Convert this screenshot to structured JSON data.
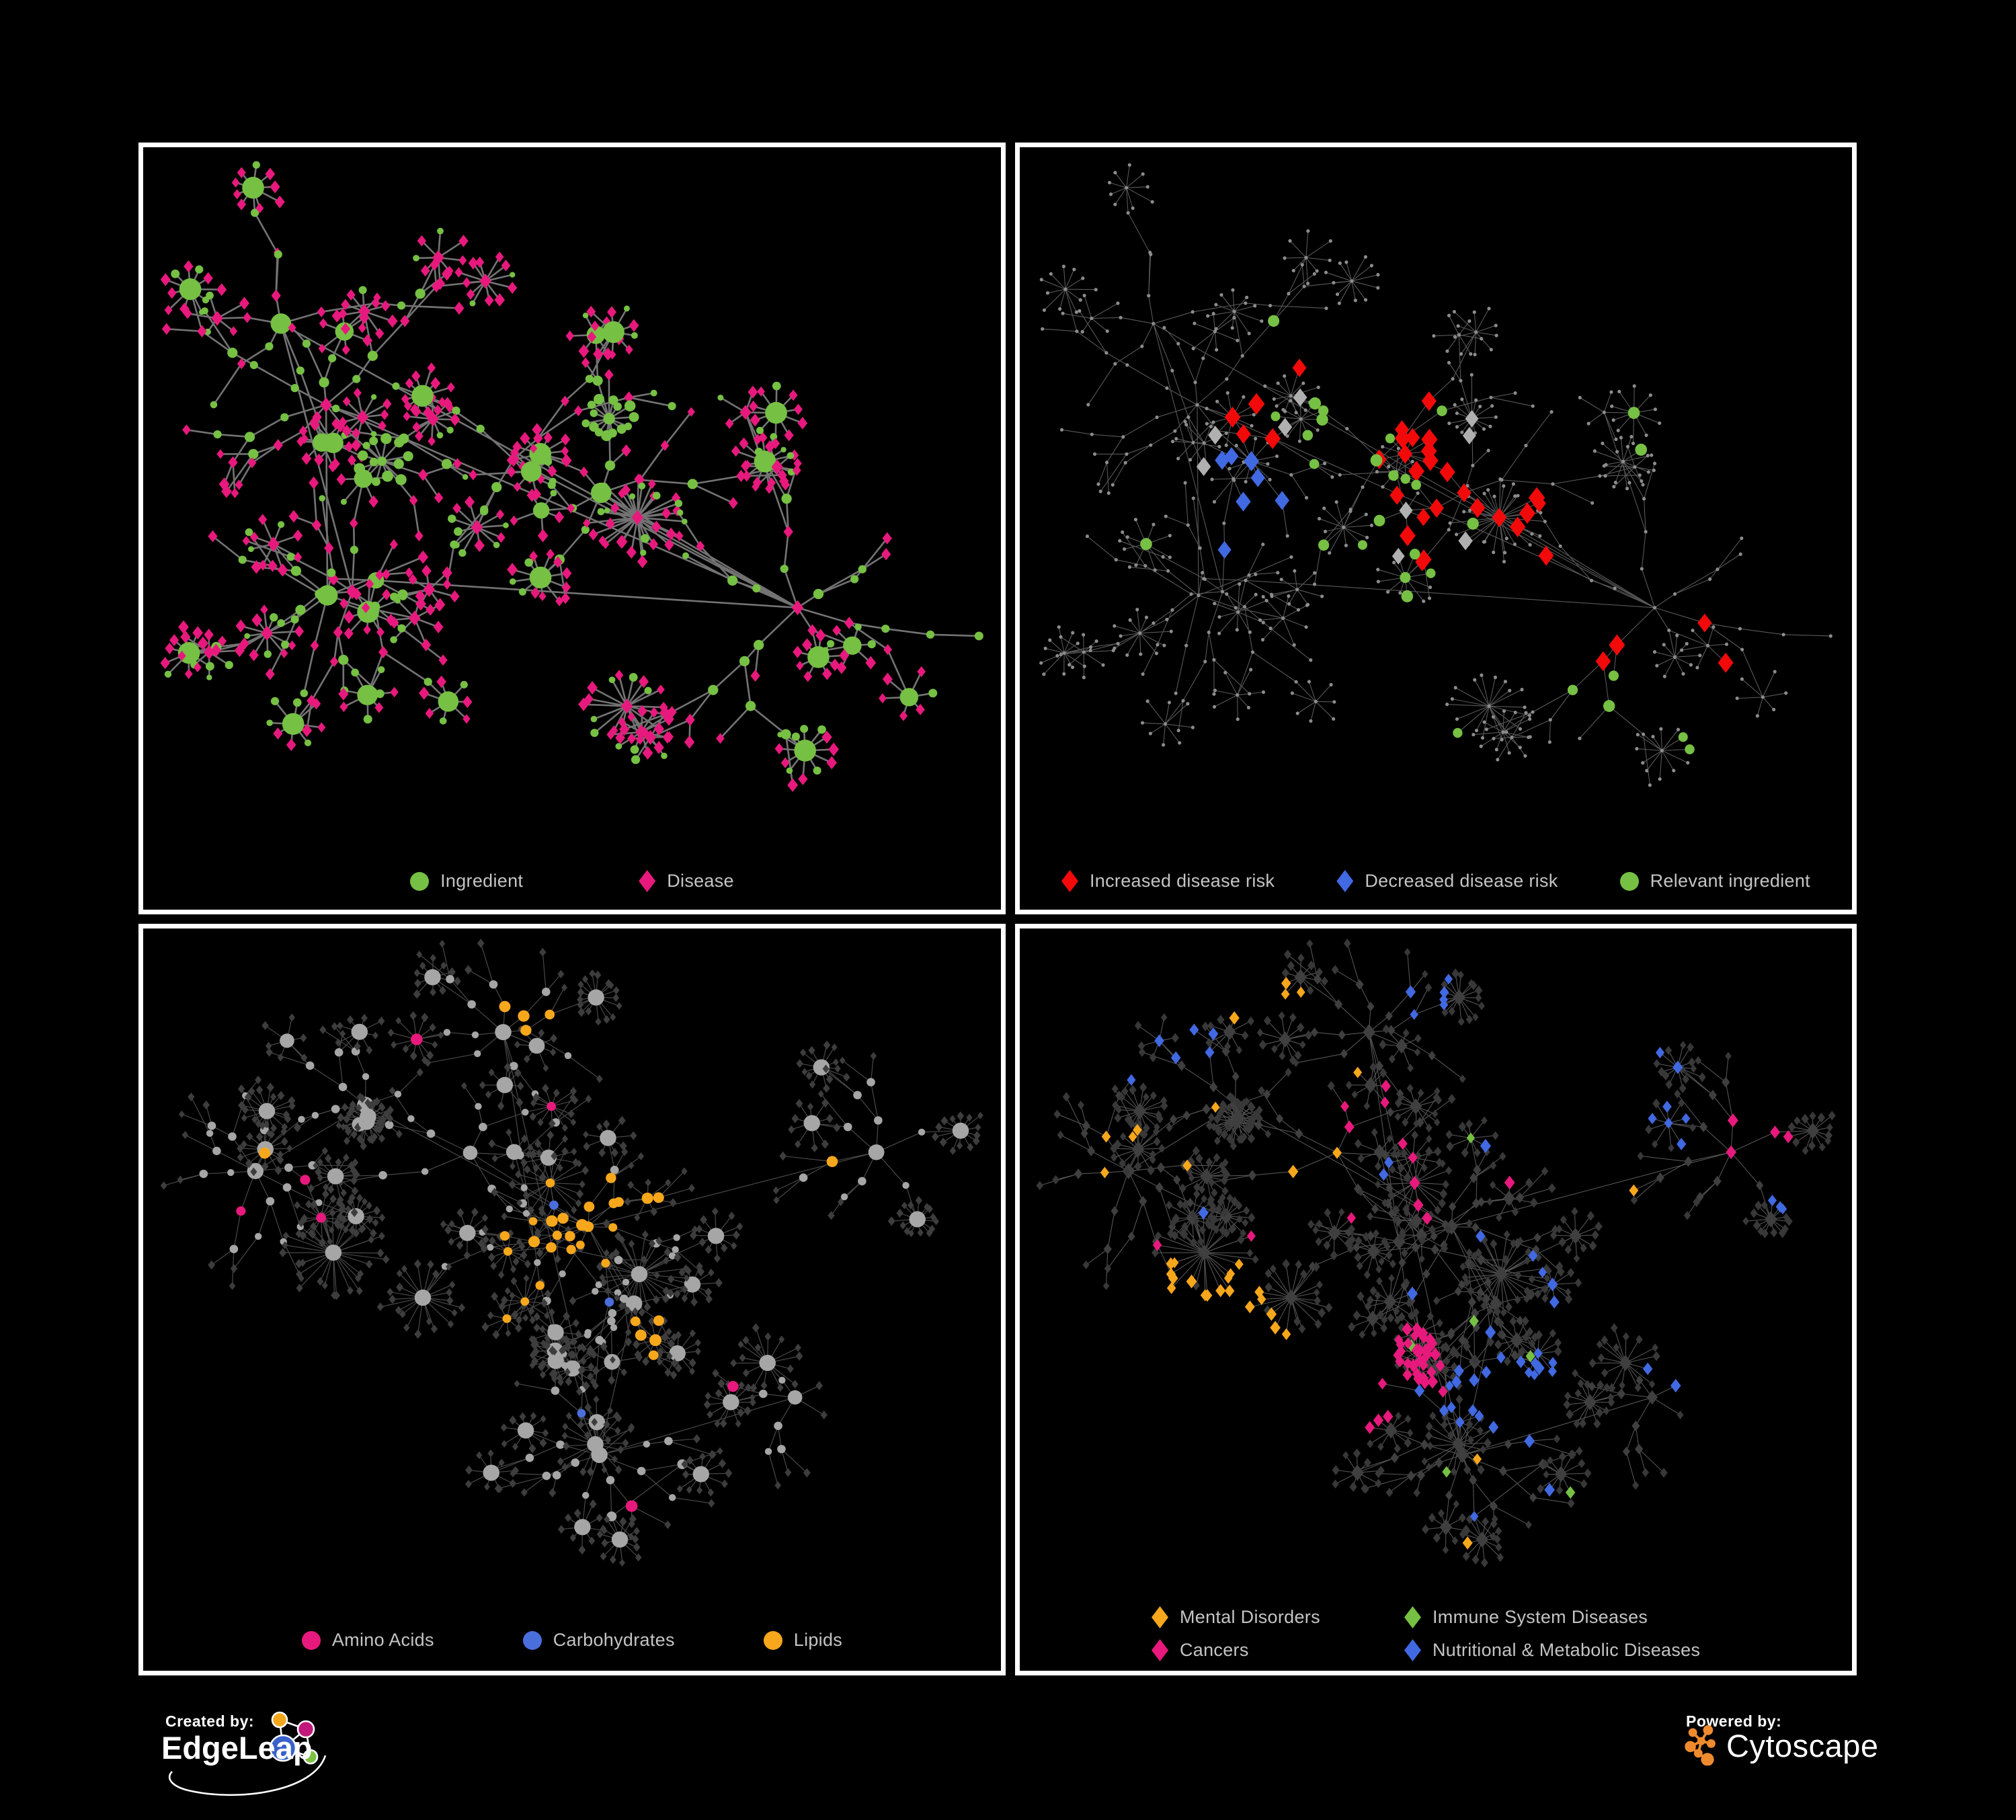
{
  "poster": {
    "background": "#000000",
    "panel_border": "#ffffff"
  },
  "colors": {
    "ingredient_green": "#76C043",
    "disease_pink": "#E8197D",
    "risk_red": "#F20A0A",
    "risk_blue": "#4169E1",
    "neutral_gray": "#B0B0B0",
    "amino_pink": "#E8197D",
    "carb_blue": "#4A6FDC",
    "lipid_orange": "#F7A71C",
    "mental_orange": "#F7A71C",
    "immune_green": "#76C043",
    "cancer_pink": "#E8197D",
    "nutri_blue": "#4169E1"
  },
  "panels": [
    {
      "name": "ingredient-disease-network",
      "legend": [
        {
          "label": "Ingredient",
          "shape": "circle",
          "color": "#76C043"
        },
        {
          "label": "Disease",
          "shape": "diamond",
          "color": "#E8197D"
        }
      ]
    },
    {
      "name": "disease-risk-network",
      "legend": [
        {
          "label": "Increased disease risk",
          "shape": "diamond",
          "color": "#F20A0A"
        },
        {
          "label": "Decreased disease risk",
          "shape": "diamond",
          "color": "#4169E1"
        },
        {
          "label": "Relevant ingredient",
          "shape": "circle",
          "color": "#76C043"
        }
      ]
    },
    {
      "name": "nutrient-class-network",
      "legend": [
        {
          "label": "Amino Acids",
          "shape": "circle",
          "color": "#E8197D"
        },
        {
          "label": "Carbohydrates",
          "shape": "circle",
          "color": "#4A6FDC"
        },
        {
          "label": "Lipids",
          "shape": "circle",
          "color": "#F7A71C"
        }
      ]
    },
    {
      "name": "disease-class-network",
      "legend": [
        {
          "label": "Mental Disorders",
          "shape": "diamond",
          "color": "#F7A71C"
        },
        {
          "label": "Immune System Diseases",
          "shape": "diamond",
          "color": "#76C043"
        },
        {
          "label": "Cancers",
          "shape": "diamond",
          "color": "#E8197D"
        },
        {
          "label": "Nutritional & Metabolic Diseases",
          "shape": "diamond",
          "color": "#4169E1"
        }
      ]
    }
  ],
  "footer": {
    "created_by": "Created by:",
    "edgeleap": "EdgeLeap",
    "powered_by": "Powered by:",
    "cytoscape": "Cytoscape",
    "cytoscape_orange": "#EF8B2F",
    "edgeleap_node_colors": [
      "#F2A71B",
      "#C2187B",
      "#3A62C9",
      "#7DC242"
    ]
  }
}
